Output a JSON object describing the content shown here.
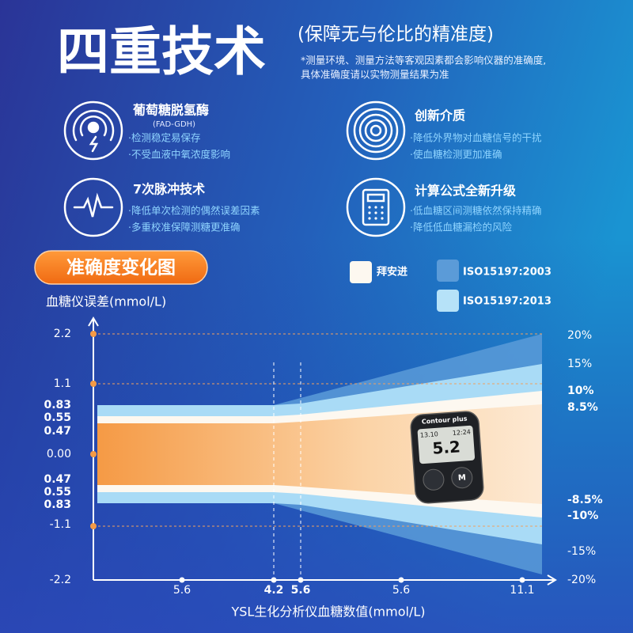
{
  "header": {
    "title": "四重技术",
    "subtitle": "(保障无与伦比的精准度)",
    "note_lines": [
      "*测量环境、测量方法等客观因素都会影响仪器的准确度,",
      "具体准确度请以实物测量结果为准"
    ]
  },
  "features": [
    {
      "title": "葡萄糖脱氢酶",
      "subtitle": "(FAD-GDH)",
      "bullets": [
        "·检测稳定易保存",
        "·不受血液中氧浓度影响"
      ]
    },
    {
      "title": "7次脉冲技术",
      "bullets": [
        "·降低单次检测的偶然误差因素",
        "·多重校准保障测糖更准确"
      ]
    },
    {
      "title": "创新介质",
      "bullets": [
        "·降低外界物对血糖信号的干扰",
        "·使血糖检测更加准确"
      ]
    },
    {
      "title": "计算公式全新升级",
      "bullets": [
        "·低血糖区间测糖依然保持精确",
        "·降低低血糖漏检的风险"
      ]
    }
  ],
  "chart": {
    "title": "准确度变化图",
    "y_label": "血糖仪误差(mmol/L)",
    "x_label": "YSL生化分析仪血糖数值(mmol/L)",
    "legend": [
      "拜安进",
      "ISO15197:2003",
      "ISO15197:2013"
    ],
    "left_ticks": [
      "2.2",
      "1.1",
      "0.83",
      "0.55",
      "0.47",
      "0.00",
      "0.47",
      "0.55",
      "0.83",
      "-1.1",
      "-2.2"
    ],
    "right_ticks": [
      "20%",
      "15%",
      "10%",
      "8.5%",
      "-8.5%",
      "-10%",
      "-15%",
      "-20%"
    ],
    "x_ticks": [
      "5.6",
      "4.2",
      "5.6",
      "5.6",
      "11.1"
    ]
  },
  "meter": {
    "brand": "Contour plus",
    "date": "13.10",
    "time": "12:24",
    "reading": "5.2",
    "button": "M"
  }
}
